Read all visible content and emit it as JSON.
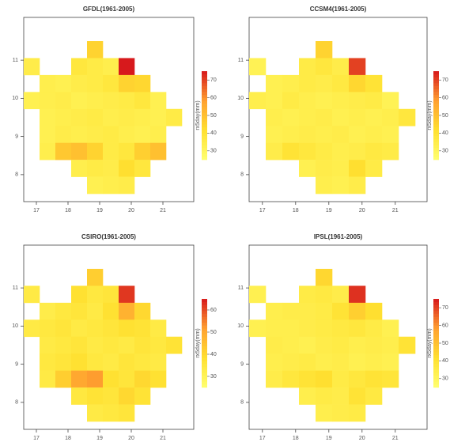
{
  "chart_data": [
    {
      "type": "heatmap",
      "title": "GFDL(1961-2005)",
      "colorbar_label": "rx5day(mm)",
      "xlim": [
        16.6,
        21.6
      ],
      "ylim": [
        7.5,
        11.5
      ],
      "xticks": [
        17,
        18,
        19,
        20,
        21
      ],
      "yticks": [
        8,
        9,
        10,
        11
      ],
      "zlim": [
        25,
        75
      ],
      "zticks": [
        30,
        40,
        50,
        60,
        70
      ],
      "colors": [
        "#ffff70",
        "#ffe030",
        "#ffa030",
        "#d7191c"
      ],
      "values": [
        [
          null,
          null,
          null,
          null,
          45,
          null,
          null,
          null,
          null,
          null
        ],
        [
          35,
          null,
          null,
          38,
          36,
          34,
          75,
          null,
          null,
          null
        ],
        [
          null,
          34,
          33,
          35,
          36,
          38,
          45,
          44,
          null,
          null
        ],
        [
          33,
          34,
          35,
          33,
          34,
          35,
          36,
          38,
          33,
          null
        ],
        [
          null,
          33,
          34,
          35,
          36,
          34,
          35,
          34,
          33,
          36
        ],
        [
          null,
          33,
          35,
          34,
          35,
          36,
          34,
          33,
          34,
          null
        ],
        [
          null,
          34,
          48,
          50,
          45,
          36,
          38,
          46,
          50,
          null
        ],
        [
          null,
          null,
          null,
          34,
          36,
          35,
          42,
          38,
          null,
          null
        ],
        [
          null,
          null,
          null,
          null,
          33,
          34,
          35,
          null,
          null,
          null
        ]
      ]
    },
    {
      "type": "heatmap",
      "title": "CCSM4(1961-2005)",
      "colorbar_label": "rx5day(mm)",
      "xlim": [
        16.6,
        21.6
      ],
      "ylim": [
        7.5,
        11.5
      ],
      "xticks": [
        17,
        18,
        19,
        20,
        21
      ],
      "yticks": [
        8,
        9,
        10,
        11
      ],
      "zlim": [
        25,
        75
      ],
      "zticks": [
        30,
        40,
        50,
        60,
        70
      ],
      "colors": [
        "#ffff70",
        "#ffe030",
        "#ffa030",
        "#d7191c"
      ],
      "values": [
        [
          null,
          null,
          null,
          null,
          45,
          null,
          null,
          null,
          null,
          null
        ],
        [
          32,
          null,
          null,
          36,
          38,
          35,
          70,
          null,
          null,
          null
        ],
        [
          null,
          33,
          34,
          36,
          35,
          37,
          44,
          40,
          null,
          null
        ],
        [
          34,
          33,
          36,
          34,
          33,
          34,
          35,
          36,
          32,
          null
        ],
        [
          null,
          34,
          33,
          34,
          35,
          33,
          34,
          33,
          34,
          38
        ],
        [
          null,
          33,
          34,
          35,
          34,
          35,
          33,
          34,
          33,
          null
        ],
        [
          null,
          35,
          40,
          38,
          36,
          34,
          35,
          37,
          36,
          null
        ],
        [
          null,
          null,
          null,
          33,
          35,
          34,
          42,
          36,
          null,
          null
        ],
        [
          null,
          null,
          null,
          null,
          34,
          33,
          35,
          null,
          null,
          null
        ]
      ]
    },
    {
      "type": "heatmap",
      "title": "CSIRO(1961-2005)",
      "colorbar_label": "rx5day(mm)",
      "xlim": [
        16.6,
        21.6
      ],
      "ylim": [
        7.5,
        11.5
      ],
      "xticks": [
        17,
        18,
        19,
        20,
        21
      ],
      "yticks": [
        8,
        9,
        10,
        11
      ],
      "zlim": [
        25,
        65
      ],
      "zticks": [
        30,
        40,
        50,
        60
      ],
      "colors": [
        "#ffff70",
        "#ffe030",
        "#ffa030",
        "#d7191c"
      ],
      "values": [
        [
          null,
          null,
          null,
          null,
          42,
          null,
          null,
          null,
          null,
          null
        ],
        [
          34,
          null,
          null,
          38,
          35,
          36,
          62,
          null,
          null,
          null
        ],
        [
          null,
          33,
          35,
          36,
          34,
          38,
          48,
          40,
          null,
          null
        ],
        [
          34,
          35,
          36,
          34,
          35,
          36,
          38,
          37,
          34,
          null
        ],
        [
          null,
          34,
          35,
          36,
          34,
          35,
          34,
          36,
          35,
          37
        ],
        [
          null,
          35,
          36,
          38,
          35,
          34,
          36,
          35,
          34,
          null
        ],
        [
          null,
          34,
          42,
          50,
          52,
          38,
          36,
          40,
          38,
          null
        ],
        [
          null,
          null,
          null,
          35,
          37,
          36,
          40,
          37,
          null,
          null
        ],
        [
          null,
          null,
          null,
          null,
          34,
          35,
          36,
          null,
          null,
          null
        ]
      ]
    },
    {
      "type": "heatmap",
      "title": "IPSL(1961-2005)",
      "colorbar_label": "rx5day(mm)",
      "xlim": [
        16.6,
        21.6
      ],
      "ylim": [
        7.5,
        11.5
      ],
      "xticks": [
        17,
        18,
        19,
        20,
        21
      ],
      "yticks": [
        8,
        9,
        10,
        11
      ],
      "zlim": [
        25,
        75
      ],
      "zticks": [
        30,
        40,
        50,
        60,
        70
      ],
      "colors": [
        "#ffff70",
        "#ffe030",
        "#ffa030",
        "#d7191c"
      ],
      "values": [
        [
          null,
          null,
          null,
          null,
          44,
          null,
          null,
          null,
          null,
          null
        ],
        [
          33,
          null,
          null,
          36,
          37,
          35,
          72,
          null,
          null,
          null
        ],
        [
          null,
          34,
          35,
          35,
          36,
          40,
          46,
          42,
          null,
          null
        ],
        [
          33,
          34,
          34,
          35,
          36,
          37,
          38,
          36,
          33,
          null
        ],
        [
          null,
          35,
          34,
          33,
          35,
          36,
          34,
          35,
          34,
          40
        ],
        [
          null,
          34,
          35,
          36,
          34,
          35,
          33,
          34,
          33,
          null
        ],
        [
          null,
          35,
          38,
          40,
          42,
          36,
          38,
          40,
          39,
          null
        ],
        [
          null,
          null,
          null,
          34,
          36,
          35,
          40,
          37,
          null,
          null
        ],
        [
          null,
          null,
          null,
          null,
          34,
          35,
          36,
          null,
          null,
          null
        ]
      ]
    }
  ]
}
